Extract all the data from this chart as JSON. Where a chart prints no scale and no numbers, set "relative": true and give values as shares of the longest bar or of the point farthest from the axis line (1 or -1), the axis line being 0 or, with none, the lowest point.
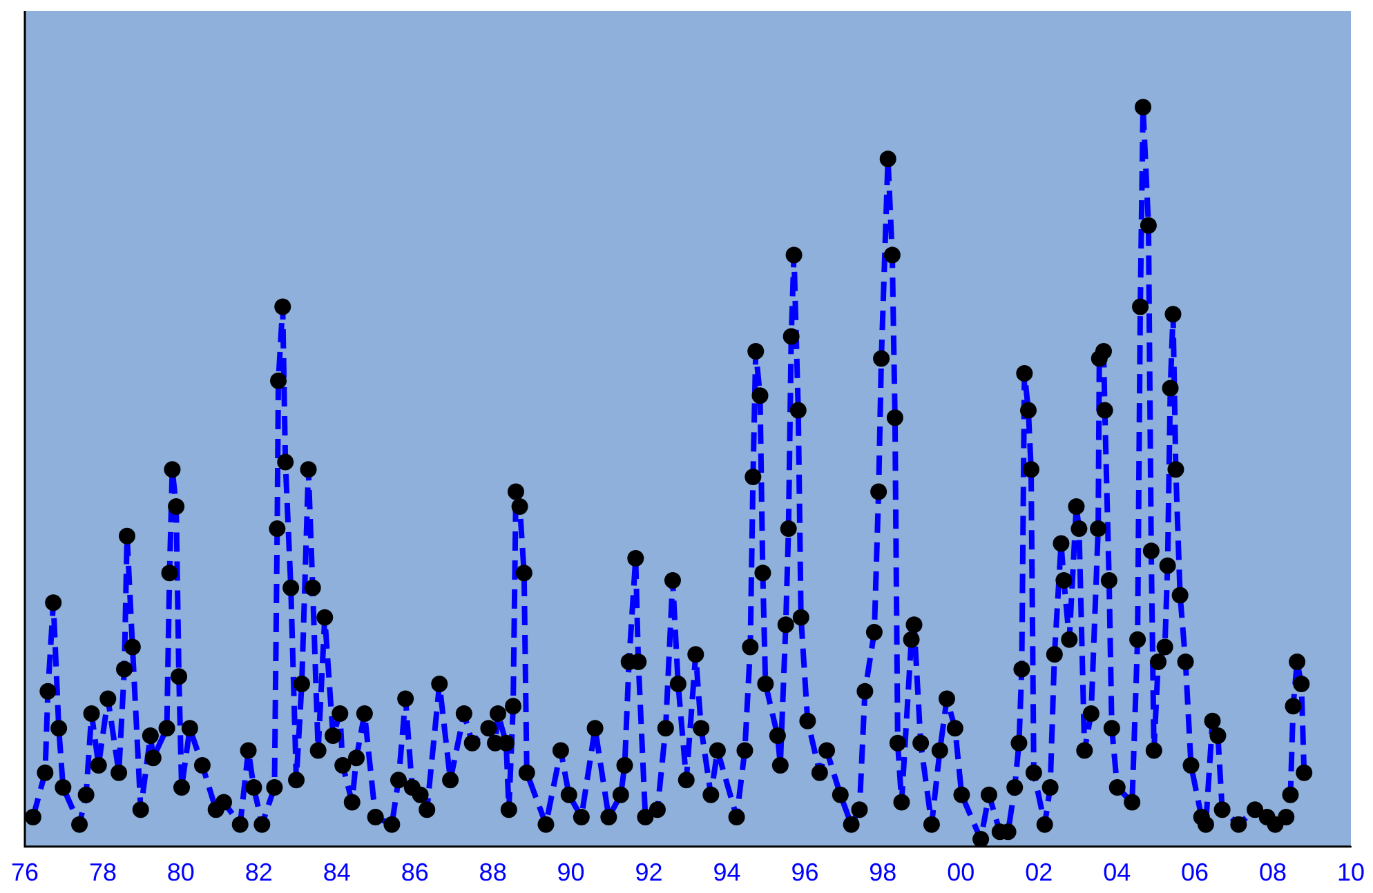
{
  "chart_data": {
    "type": "line",
    "relative": true,
    "marker": "circle",
    "line_style": "dashed",
    "grid": false,
    "legend": false,
    "xlim": [
      1976,
      2010
    ],
    "xticks": [
      {
        "value": 1976,
        "label": "76"
      },
      {
        "value": 1978,
        "label": "78"
      },
      {
        "value": 1980,
        "label": "80"
      },
      {
        "value": 1982,
        "label": "82"
      },
      {
        "value": 1984,
        "label": "84"
      },
      {
        "value": 1986,
        "label": "86"
      },
      {
        "value": 1988,
        "label": "88"
      },
      {
        "value": 1990,
        "label": "90"
      },
      {
        "value": 1992,
        "label": "92"
      },
      {
        "value": 1994,
        "label": "94"
      },
      {
        "value": 1996,
        "label": "96"
      },
      {
        "value": 1998,
        "label": "98"
      },
      {
        "value": 2000,
        "label": "00"
      },
      {
        "value": 2002,
        "label": "02"
      },
      {
        "value": 2004,
        "label": "04"
      },
      {
        "value": 2006,
        "label": "06"
      },
      {
        "value": 2008,
        "label": "08"
      },
      {
        "value": 2010,
        "label": "10"
      }
    ],
    "x": [
      1976.21,
      1976.52,
      1976.59,
      1976.73,
      1976.87,
      1976.98,
      1977.4,
      1977.57,
      1977.71,
      1977.89,
      1978.13,
      1978.41,
      1978.55,
      1978.62,
      1978.76,
      1978.97,
      1979.22,
      1979.29,
      1979.64,
      1979.71,
      1979.78,
      1979.88,
      1979.95,
      1980.02,
      1980.23,
      1980.55,
      1980.9,
      1981.1,
      1981.52,
      1981.73,
      1981.87,
      1982.08,
      1982.4,
      1982.47,
      1982.5,
      1982.61,
      1982.68,
      1982.82,
      1982.96,
      1983.1,
      1983.27,
      1983.38,
      1983.52,
      1983.69,
      1983.9,
      1984.08,
      1984.15,
      1984.39,
      1984.5,
      1984.71,
      1984.99,
      1985.41,
      1985.58,
      1985.76,
      1985.93,
      1986.14,
      1986.31,
      1986.63,
      1986.91,
      1987.26,
      1987.47,
      1987.89,
      1988.06,
      1988.13,
      1988.34,
      1988.41,
      1988.52,
      1988.59,
      1988.69,
      1988.8,
      1988.87,
      1989.36,
      1989.74,
      1989.95,
      1990.27,
      1990.62,
      1990.97,
      1991.28,
      1991.38,
      1991.49,
      1991.66,
      1991.73,
      1991.91,
      1992.22,
      1992.43,
      1992.61,
      1992.75,
      1992.96,
      1993.2,
      1993.34,
      1993.59,
      1993.76,
      1994.25,
      1994.46,
      1994.6,
      1994.67,
      1994.74,
      1994.85,
      1994.92,
      1994.99,
      1995.3,
      1995.37,
      1995.51,
      1995.58,
      1995.65,
      1995.72,
      1995.83,
      1995.9,
      1996.07,
      1996.38,
      1996.56,
      1996.91,
      1997.19,
      1997.4,
      1997.54,
      1997.78,
      1997.89,
      1997.96,
      1998.13,
      1998.24,
      1998.31,
      1998.38,
      1998.48,
      1998.73,
      1998.8,
      1998.97,
      1999.25,
      1999.46,
      1999.64,
      1999.85,
      2000.02,
      2000.51,
      2000.72,
      2001.0,
      2001.21,
      2001.38,
      2001.49,
      2001.56,
      2001.63,
      2001.73,
      2001.8,
      2001.87,
      2002.15,
      2002.29,
      2002.4,
      2002.57,
      2002.64,
      2002.78,
      2002.96,
      2003.03,
      2003.17,
      2003.34,
      2003.52,
      2003.55,
      2003.66,
      2003.69,
      2003.8,
      2003.87,
      2004.01,
      2004.39,
      2004.53,
      2004.6,
      2004.67,
      2004.81,
      2004.88,
      2004.95,
      2005.06,
      2005.23,
      2005.3,
      2005.37,
      2005.44,
      2005.51,
      2005.62,
      2005.76,
      2005.9,
      2006.17,
      2006.28,
      2006.45,
      2006.59,
      2006.7,
      2007.12,
      2007.54,
      2007.85,
      2008.06,
      2008.34,
      2008.45,
      2008.52,
      2008.62,
      2008.73,
      2008.8
    ],
    "series": [
      {
        "color": "#0000ff",
        "values": [
          0.04,
          0.1,
          0.21,
          0.33,
          0.16,
          0.08,
          0.03,
          0.07,
          0.18,
          0.11,
          0.2,
          0.1,
          0.24,
          0.42,
          0.27,
          0.05,
          0.15,
          0.12,
          0.16,
          0.37,
          0.51,
          0.46,
          0.23,
          0.08,
          0.16,
          0.11,
          0.05,
          0.06,
          0.03,
          0.13,
          0.08,
          0.03,
          0.08,
          0.43,
          0.63,
          0.73,
          0.52,
          0.35,
          0.09,
          0.22,
          0.51,
          0.35,
          0.13,
          0.31,
          0.15,
          0.18,
          0.11,
          0.06,
          0.12,
          0.18,
          0.04,
          0.03,
          0.09,
          0.2,
          0.08,
          0.07,
          0.05,
          0.22,
          0.09,
          0.18,
          0.14,
          0.16,
          0.14,
          0.18,
          0.14,
          0.05,
          0.19,
          0.48,
          0.46,
          0.37,
          0.1,
          0.03,
          0.13,
          0.07,
          0.04,
          0.16,
          0.04,
          0.07,
          0.11,
          0.25,
          0.39,
          0.25,
          0.04,
          0.05,
          0.16,
          0.36,
          0.22,
          0.09,
          0.26,
          0.16,
          0.07,
          0.13,
          0.04,
          0.13,
          0.27,
          0.5,
          0.67,
          0.61,
          0.37,
          0.22,
          0.15,
          0.11,
          0.3,
          0.43,
          0.69,
          0.8,
          0.59,
          0.31,
          0.17,
          0.1,
          0.13,
          0.07,
          0.03,
          0.05,
          0.21,
          0.29,
          0.48,
          0.66,
          0.93,
          0.8,
          0.58,
          0.14,
          0.06,
          0.28,
          0.3,
          0.14,
          0.03,
          0.13,
          0.2,
          0.16,
          0.07,
          0.01,
          0.07,
          0.02,
          0.02,
          0.08,
          0.14,
          0.24,
          0.64,
          0.59,
          0.51,
          0.1,
          0.03,
          0.08,
          0.26,
          0.41,
          0.36,
          0.28,
          0.46,
          0.43,
          0.13,
          0.18,
          0.43,
          0.66,
          0.67,
          0.59,
          0.36,
          0.16,
          0.08,
          0.06,
          0.28,
          0.73,
          1,
          0.84,
          0.4,
          0.13,
          0.25,
          0.27,
          0.38,
          0.62,
          0.72,
          0.51,
          0.34,
          0.25,
          0.11,
          0.04,
          0.03,
          0.17,
          0.15,
          0.05,
          0.03,
          0.05,
          0.04,
          0.03,
          0.04,
          0.07,
          0.19,
          0.25,
          0.22,
          0.1
        ]
      }
    ]
  }
}
